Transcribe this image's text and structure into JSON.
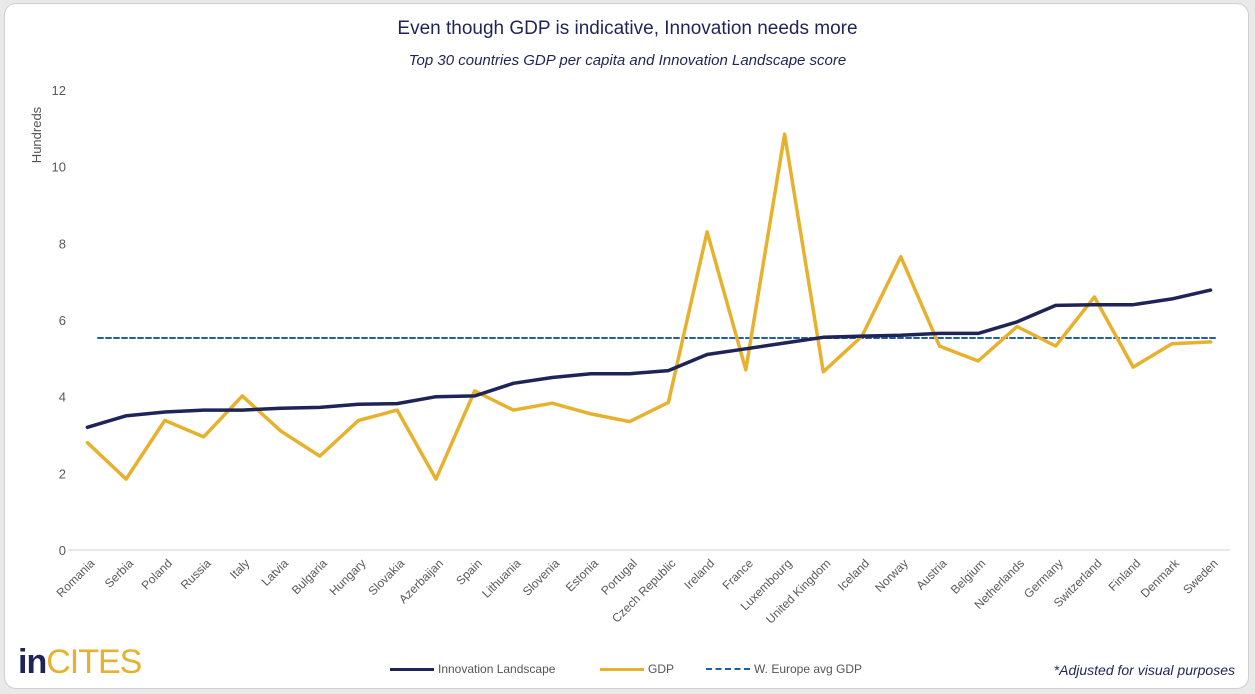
{
  "chart_data": {
    "type": "line",
    "title": "Even though GDP is indicative, Innovation needs more",
    "subtitle": "Top 30 countries GDP per capita and Innovation Landscape score",
    "ylabel": "Hundreds",
    "xlabel": "",
    "ylim": [
      0,
      12
    ],
    "yticks": [
      0,
      2,
      4,
      6,
      8,
      10,
      12
    ],
    "grid": false,
    "legend_position": "bottom",
    "categories": [
      "Romania",
      "Serbia",
      "Poland",
      "Russia",
      "Italy",
      "Latvia",
      "Bulgaria",
      "Hungary",
      "Slovakia",
      "Azerbaijan",
      "Spain",
      "Lithuania",
      "Slovenia",
      "Estonia",
      "Portugal",
      "Czech Republic",
      "Ireland",
      "France",
      "Luxembourg",
      "United Kingdom",
      "Iceland",
      "Norway",
      "Austria",
      "Belgium",
      "Netherlands",
      "Germany",
      "Switzerland",
      "Finland",
      "Denmark",
      "Sweden"
    ],
    "series": [
      {
        "name": "Innovation Landscape",
        "color": "#1f2458",
        "style": "solid",
        "values": [
          3.2,
          3.5,
          3.6,
          3.65,
          3.65,
          3.7,
          3.72,
          3.8,
          3.82,
          4.0,
          4.02,
          4.35,
          4.5,
          4.6,
          4.6,
          4.68,
          5.1,
          5.25,
          5.4,
          5.55,
          5.58,
          5.6,
          5.65,
          5.65,
          5.95,
          6.38,
          6.4,
          6.4,
          6.55,
          6.78
        ]
      },
      {
        "name": "GDP",
        "color": "#e8b12d",
        "style": "solid",
        "values": [
          2.8,
          1.85,
          3.38,
          2.95,
          4.02,
          3.1,
          2.45,
          3.38,
          3.65,
          1.85,
          4.15,
          3.65,
          3.83,
          3.55,
          3.35,
          3.85,
          8.3,
          4.7,
          10.85,
          4.65,
          5.58,
          7.65,
          5.32,
          4.93,
          5.83,
          5.32,
          6.6,
          4.77,
          5.38,
          5.43
        ]
      },
      {
        "name": "W. Europe avg GDP",
        "color": "#1f5fa8",
        "style": "dashed",
        "values": [
          5.53,
          5.53,
          5.53,
          5.53,
          5.53,
          5.53,
          5.53,
          5.53,
          5.53,
          5.53,
          5.53,
          5.53,
          5.53,
          5.53,
          5.53,
          5.53,
          5.53,
          5.53,
          5.53,
          5.53,
          5.53,
          5.53,
          5.53,
          5.53,
          5.53,
          5.53,
          5.53,
          5.53,
          5.53,
          5.53
        ]
      }
    ]
  },
  "footer": {
    "logo_in": "in",
    "logo_cites": "CITES",
    "note": "*Adjusted for visual purposes"
  }
}
